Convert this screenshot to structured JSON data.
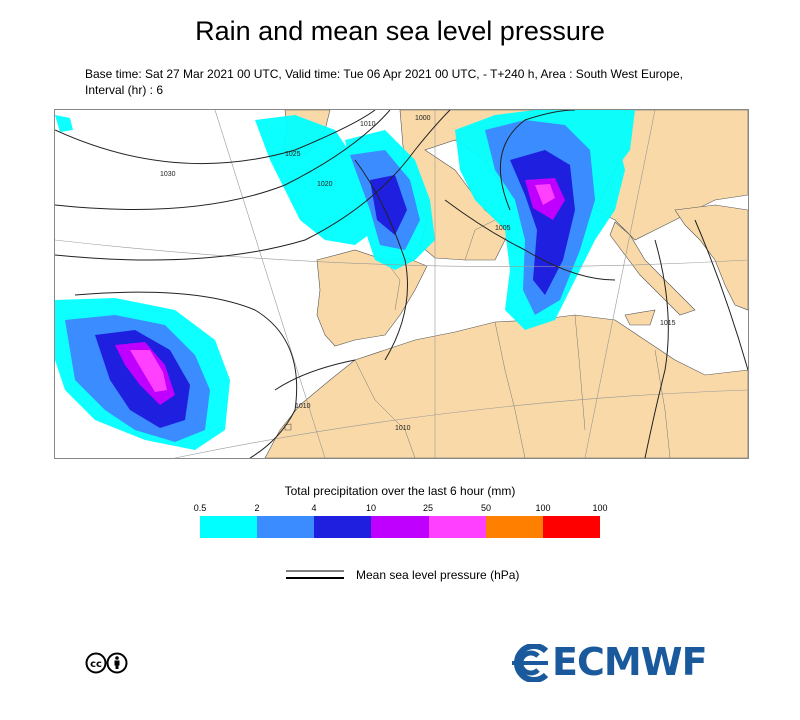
{
  "title": "Rain and mean sea level pressure",
  "subtitle": "Base time: Sat 27 Mar 2021 00 UTC, Valid time: Tue 06 Apr 2021 00 UTC, - T+240 h, Area : South West Europe, Interval (hr) : 6",
  "map": {
    "land_color": "#f9d9a8",
    "sea_color": "#ffffff",
    "isobar_labels": [
      "1030",
      "1010",
      "1025",
      "1020",
      "1000",
      "1005",
      "1015",
      "1010",
      "1010"
    ]
  },
  "legend": {
    "title": "Total precipitation over the last 6 hour (mm)",
    "ticks": [
      "0.5",
      "2",
      "4",
      "10",
      "25",
      "50",
      "100",
      "100"
    ],
    "colors": [
      "#00ffff",
      "#3a8cff",
      "#1f1fe0",
      "#c000ff",
      "#ff40ff",
      "#ff8000",
      "#ff0000"
    ]
  },
  "mslp_legend": {
    "label": "Mean sea level pressure (hPa)"
  },
  "license_icon": "creative-commons-by-icon",
  "logo": {
    "text": "ECMWF",
    "color": "#1a5a9c"
  }
}
